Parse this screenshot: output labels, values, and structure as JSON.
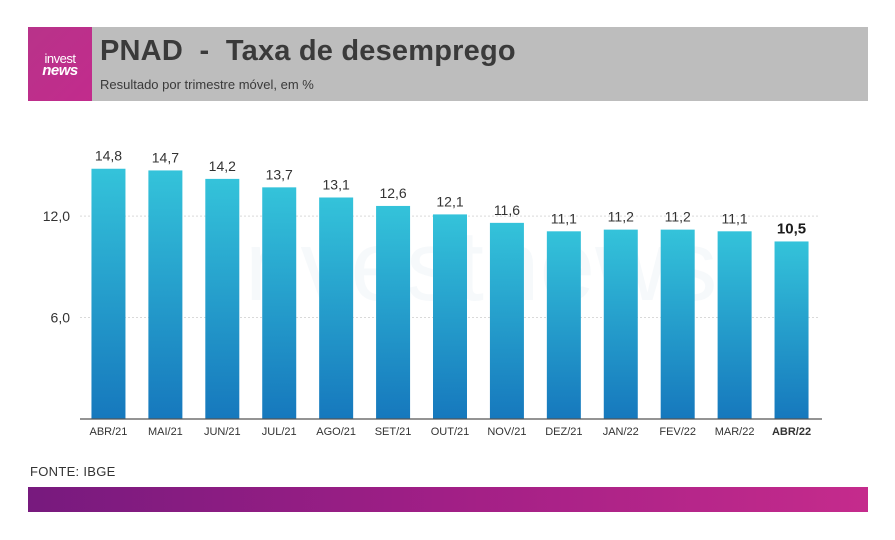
{
  "header": {
    "logo_line1": "invest",
    "logo_line2": "news",
    "title": "PNAD  -  Taxa de desemprego",
    "subtitle": "Resultado por trimestre móvel, em %"
  },
  "footer": {
    "source": "FONTE: IBGE"
  },
  "watermark": "investnews",
  "colors": {
    "bar_top": "#34c3da",
    "bar_bottom": "#1678bd",
    "header_bg": "#bdbdbd",
    "accent": "#c22b8c"
  },
  "chart_data": {
    "type": "bar",
    "categories": [
      "ABR/21",
      "MAI/21",
      "JUN/21",
      "JUL/21",
      "AGO/21",
      "SET/21",
      "OUT/21",
      "NOV/21",
      "DEZ/21",
      "JAN/22",
      "FEV/22",
      "MAR/22",
      "ABR/22"
    ],
    "values": [
      14.8,
      14.7,
      14.2,
      13.7,
      13.1,
      12.6,
      12.1,
      11.6,
      11.1,
      11.2,
      11.2,
      11.1,
      10.5
    ],
    "value_labels": [
      "14,8",
      "14,7",
      "14,2",
      "13,7",
      "13,1",
      "12,6",
      "12,1",
      "11,6",
      "11,1",
      "11,2",
      "11,2",
      "11,1",
      "10,5"
    ],
    "y_ticks": [
      6.0,
      12.0
    ],
    "y_tick_labels": [
      "6,0",
      "12,0"
    ],
    "ylim": [
      0,
      16.5
    ],
    "highlight_last": true,
    "grid": true
  }
}
